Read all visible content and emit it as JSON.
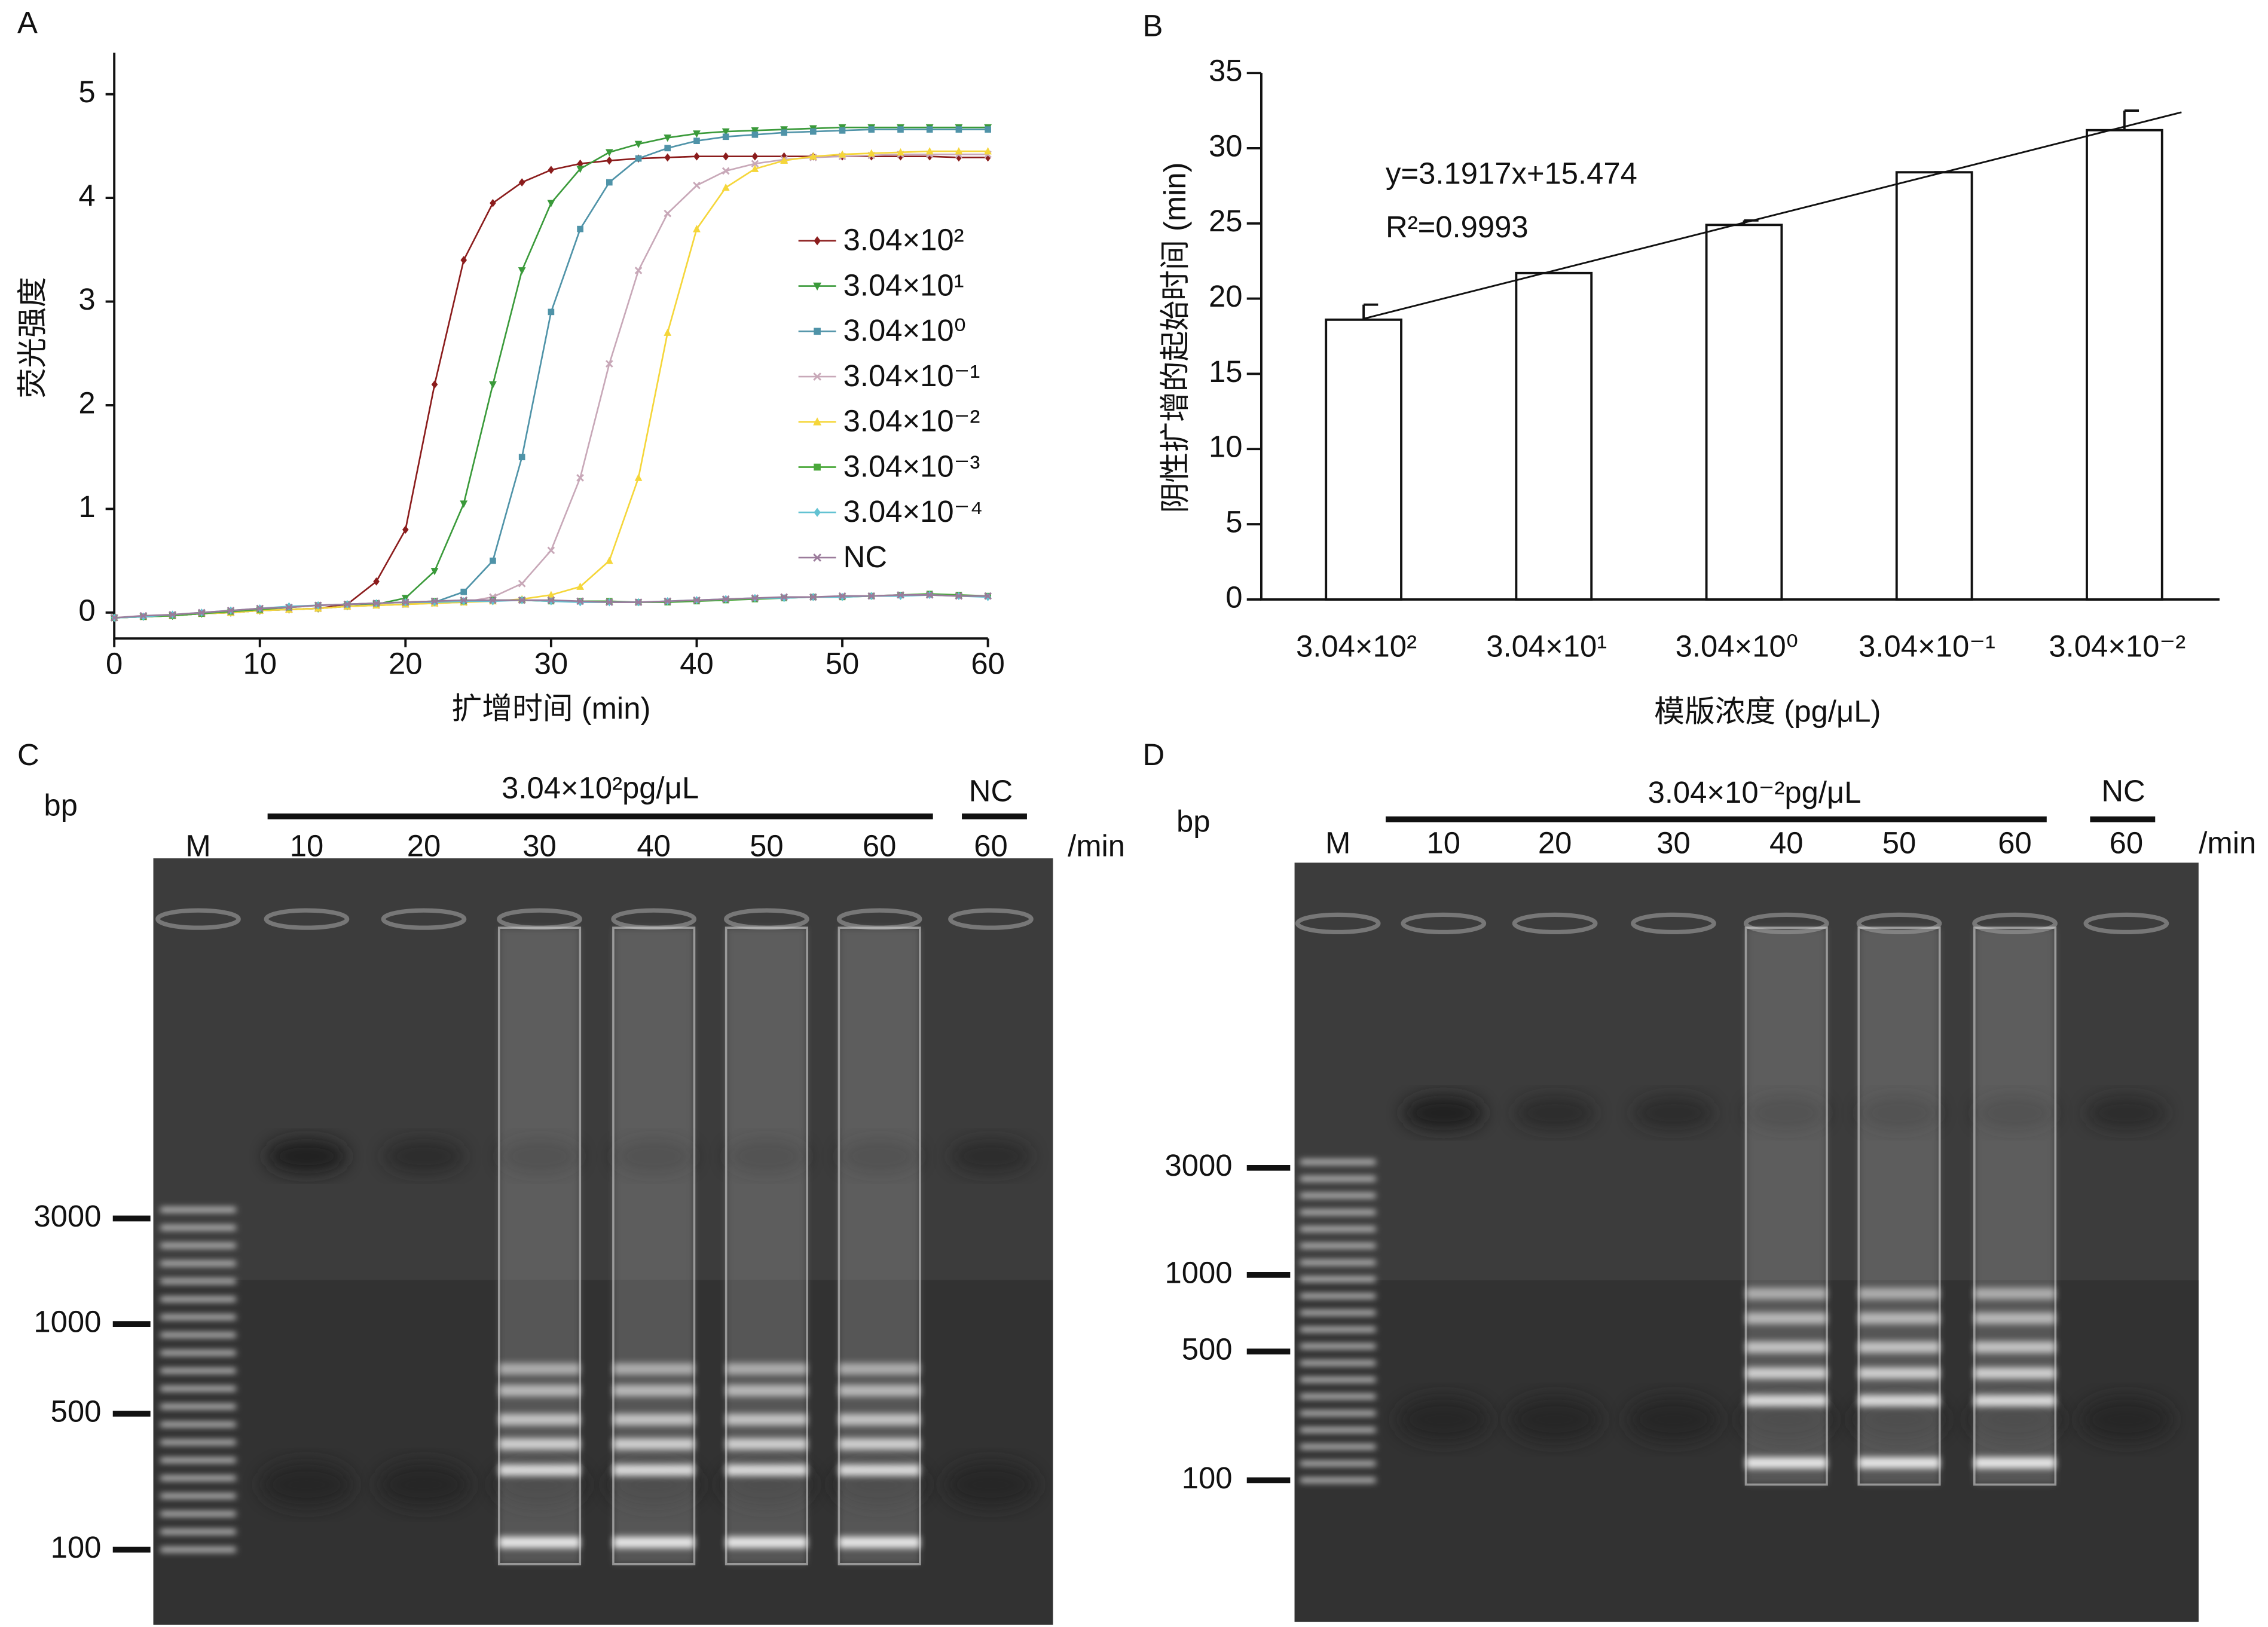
{
  "chart_data": [
    {
      "type": "line",
      "panel": "A",
      "xlabel": "扩增时间 (min)",
      "ylabel": "荧光强度",
      "x": [
        0,
        2,
        4,
        6,
        8,
        10,
        12,
        14,
        16,
        18,
        20,
        22,
        24,
        26,
        28,
        30,
        32,
        34,
        36,
        38,
        40,
        42,
        44,
        46,
        48,
        50,
        52,
        54,
        56,
        58,
        60
      ],
      "series": [
        {
          "name": "3.04×10²",
          "color": "#8b1c1c",
          "marker": "diamond",
          "values": [
            -0.05,
            -0.04,
            -0.03,
            -0.01,
            0,
            0.02,
            0.03,
            0.04,
            0.08,
            0.3,
            0.8,
            2.2,
            3.4,
            3.95,
            4.15,
            4.27,
            4.33,
            4.36,
            4.38,
            4.39,
            4.4,
            4.4,
            4.4,
            4.4,
            4.4,
            4.4,
            4.4,
            4.4,
            4.4,
            4.39,
            4.39
          ]
        },
        {
          "name": "3.04×10¹",
          "color": "#3a9a3a",
          "marker": "triangle-down",
          "values": [
            -0.05,
            -0.04,
            -0.03,
            -0.01,
            0,
            0.02,
            0.03,
            0.04,
            0.06,
            0.08,
            0.14,
            0.4,
            1.05,
            2.2,
            3.3,
            3.95,
            4.28,
            4.44,
            4.52,
            4.58,
            4.62,
            4.64,
            4.65,
            4.66,
            4.67,
            4.68,
            4.68,
            4.68,
            4.68,
            4.68,
            4.68
          ]
        },
        {
          "name": "3.04×10⁰",
          "color": "#4f93a8",
          "marker": "square",
          "values": [
            -0.05,
            -0.04,
            -0.03,
            -0.01,
            0,
            0.02,
            0.03,
            0.04,
            0.06,
            0.07,
            0.08,
            0.1,
            0.2,
            0.5,
            1.5,
            2.9,
            3.7,
            4.15,
            4.38,
            4.48,
            4.55,
            4.59,
            4.61,
            4.63,
            4.64,
            4.65,
            4.66,
            4.66,
            4.66,
            4.66,
            4.66
          ]
        },
        {
          "name": "3.04×10⁻¹",
          "color": "#c8a8b8",
          "marker": "x",
          "values": [
            -0.05,
            -0.04,
            -0.03,
            -0.01,
            0,
            0.02,
            0.03,
            0.04,
            0.06,
            0.07,
            0.08,
            0.09,
            0.1,
            0.15,
            0.28,
            0.6,
            1.3,
            2.4,
            3.3,
            3.85,
            4.12,
            4.26,
            4.33,
            4.37,
            4.39,
            4.4,
            4.41,
            4.42,
            4.42,
            4.42,
            4.42
          ]
        },
        {
          "name": "3.04×10⁻²",
          "color": "#f5d63a",
          "marker": "triangle",
          "values": [
            -0.05,
            -0.04,
            -0.03,
            -0.01,
            0,
            0.02,
            0.03,
            0.04,
            0.06,
            0.07,
            0.08,
            0.09,
            0.1,
            0.11,
            0.13,
            0.17,
            0.25,
            0.5,
            1.3,
            2.7,
            3.7,
            4.1,
            4.28,
            4.36,
            4.4,
            4.42,
            4.43,
            4.44,
            4.45,
            4.45,
            4.45
          ]
        },
        {
          "name": "3.04×10⁻³",
          "color": "#4aa83a",
          "marker": "square",
          "values": [
            -0.05,
            -0.04,
            -0.03,
            -0.01,
            0.01,
            0.03,
            0.05,
            0.07,
            0.08,
            0.09,
            0.1,
            0.11,
            0.11,
            0.12,
            0.12,
            0.11,
            0.11,
            0.11,
            0.1,
            0.1,
            0.11,
            0.12,
            0.13,
            0.14,
            0.15,
            0.15,
            0.16,
            0.17,
            0.18,
            0.17,
            0.16
          ]
        },
        {
          "name": "3.04×10⁻⁴",
          "color": "#62c2d2",
          "marker": "diamond",
          "values": [
            -0.05,
            -0.04,
            -0.02,
            0,
            0.02,
            0.04,
            0.06,
            0.07,
            0.08,
            0.09,
            0.1,
            0.1,
            0.11,
            0.11,
            0.12,
            0.11,
            0.1,
            0.1,
            0.1,
            0.11,
            0.12,
            0.13,
            0.14,
            0.14,
            0.15,
            0.15,
            0.16,
            0.16,
            0.17,
            0.16,
            0.15
          ]
        },
        {
          "name": "NC",
          "color": "#9b7b9b",
          "marker": "x",
          "values": [
            -0.05,
            -0.03,
            -0.02,
            0,
            0.02,
            0.04,
            0.05,
            0.07,
            0.08,
            0.09,
            0.1,
            0.11,
            0.12,
            0.12,
            0.12,
            0.12,
            0.11,
            0.1,
            0.1,
            0.11,
            0.12,
            0.13,
            0.14,
            0.15,
            0.15,
            0.16,
            0.16,
            0.17,
            0.17,
            0.16,
            0.16
          ]
        }
      ],
      "xlim": [
        0,
        60
      ],
      "xticks": [
        0,
        10,
        20,
        30,
        40,
        50,
        60
      ],
      "ylim": [
        -0.25,
        5.4
      ],
      "yticks": [
        0,
        1,
        2,
        3,
        4,
        5
      ],
      "legend": "center-right"
    },
    {
      "type": "bar",
      "panel": "B",
      "xlabel": "模版浓度 (pg/μL)",
      "ylabel": "阴性扩增的起始时间 (min)",
      "categories": [
        "3.04×10²",
        "3.04×10¹",
        "3.04×10⁰",
        "3.04×10⁻¹",
        "3.04×10⁻²"
      ],
      "values": [
        18.6,
        21.7,
        24.9,
        28.4,
        31.2
      ],
      "errors": [
        1.0,
        0,
        0.3,
        0,
        1.3
      ],
      "color": "#ffffff",
      "ylim": [
        0,
        35
      ],
      "yticks": [
        0,
        5,
        10,
        15,
        20,
        25,
        30,
        35
      ],
      "trendline": {
        "slope": 3.1917,
        "intercept": 15.474,
        "equation": "y=3.1917x+15.474",
        "r2": "R²=0.9993"
      }
    }
  ],
  "gels": [
    {
      "panel": "C",
      "unit": "bp",
      "header": "3.04×10²pg/μL",
      "control": "NC",
      "time_unit": "/min",
      "lanes": [
        "M",
        "10",
        "20",
        "30",
        "40",
        "50",
        "60",
        "60"
      ],
      "markers": [
        "3000",
        "1000",
        "500",
        "100"
      ]
    },
    {
      "panel": "D",
      "unit": "bp",
      "header": "3.04×10⁻²pg/μL",
      "control": "NC",
      "time_unit": "/min",
      "lanes": [
        "M",
        "10",
        "20",
        "30",
        "40",
        "50",
        "60",
        "60"
      ],
      "markers": [
        "3000",
        "1000",
        "500",
        "100"
      ]
    }
  ]
}
